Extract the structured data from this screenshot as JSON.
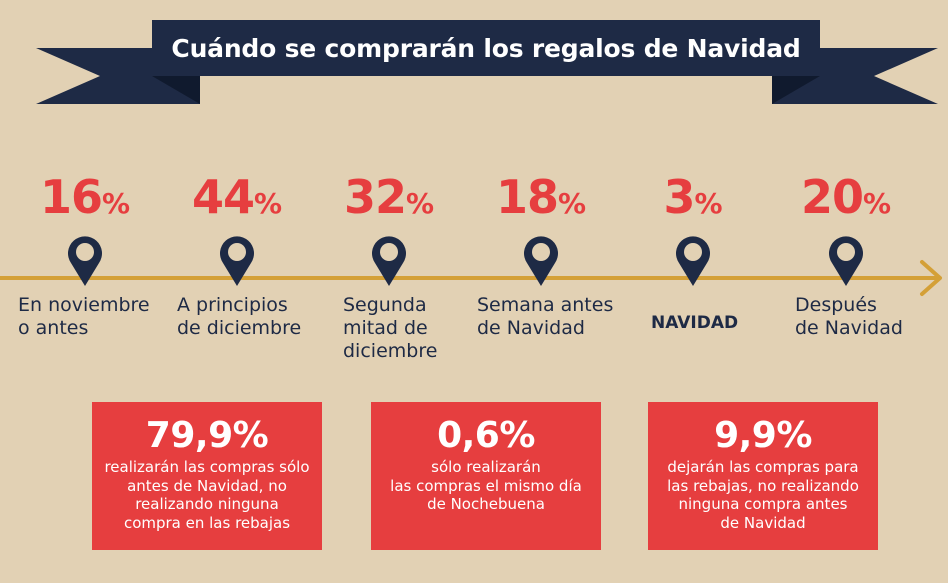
{
  "title": "Cuándo se comprarán los regalos de Navidad",
  "colors": {
    "background": "#e2d1b4",
    "navy": "#1e2a45",
    "red": "#e63e3f",
    "gold": "#d4a037"
  },
  "chart_data": {
    "type": "timeline",
    "title": "Cuándo se comprarán los regalos de Navidad",
    "unit": "%",
    "periods": [
      {
        "value": 16,
        "label": "En noviembre\no antes"
      },
      {
        "value": 44,
        "label": "A principios\nde diciembre"
      },
      {
        "value": 32,
        "label": "Segunda\nmitad de\ndiciembre"
      },
      {
        "value": 18,
        "label": "Semana antes\nde Navidad"
      },
      {
        "value": 3,
        "label": "NAVIDAD"
      },
      {
        "value": 20,
        "label": "Después\nde Navidad"
      }
    ]
  },
  "highlights": [
    {
      "value": "79,9%",
      "text": "realizarán las compras sólo\nantes de Navidad, no\nrealizando ninguna\ncompra en las rebajas"
    },
    {
      "value": "0,6%",
      "text": "sólo realizarán\nlas compras el mismo día\nde Nochebuena"
    },
    {
      "value": "9,9%",
      "text": "dejarán las compras para\nlas rebajas, no realizando\nninguna compra antes\nde Navidad"
    }
  ]
}
